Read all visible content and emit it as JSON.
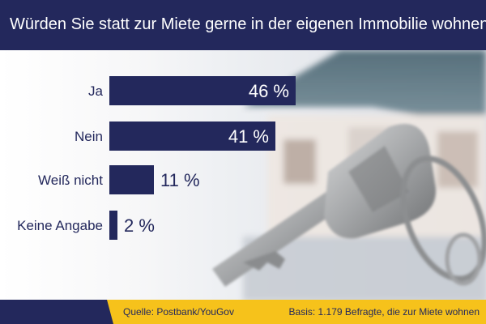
{
  "header": {
    "title": "Würden Sie statt zur Miete gerne in der eigenen Immobilie wohnen?"
  },
  "chart_data": {
    "type": "bar",
    "orientation": "horizontal",
    "title": "Würden Sie statt zur Miete gerne in der eigenen Immobilie wohnen?",
    "categories": [
      "Ja",
      "Nein",
      "Weiß nicht",
      "Keine Angabe"
    ],
    "values": [
      46,
      41,
      11,
      2
    ],
    "value_labels": [
      "46 %",
      "41 %",
      "11 %",
      "2 %"
    ],
    "unit": "%",
    "xlim": [
      0,
      100
    ],
    "grid": false,
    "legend": "none",
    "bar_color": "#23285c"
  },
  "footer": {
    "source": "Quelle: Postbank/YouGov",
    "basis": "Basis: 1.179 Befragte, die zur Miete wohnen"
  },
  "colors": {
    "navy": "#23285c",
    "yellow": "#f6c21b",
    "background": "#ffffff"
  },
  "icons": {
    "backdrop": "house-key-photo"
  }
}
